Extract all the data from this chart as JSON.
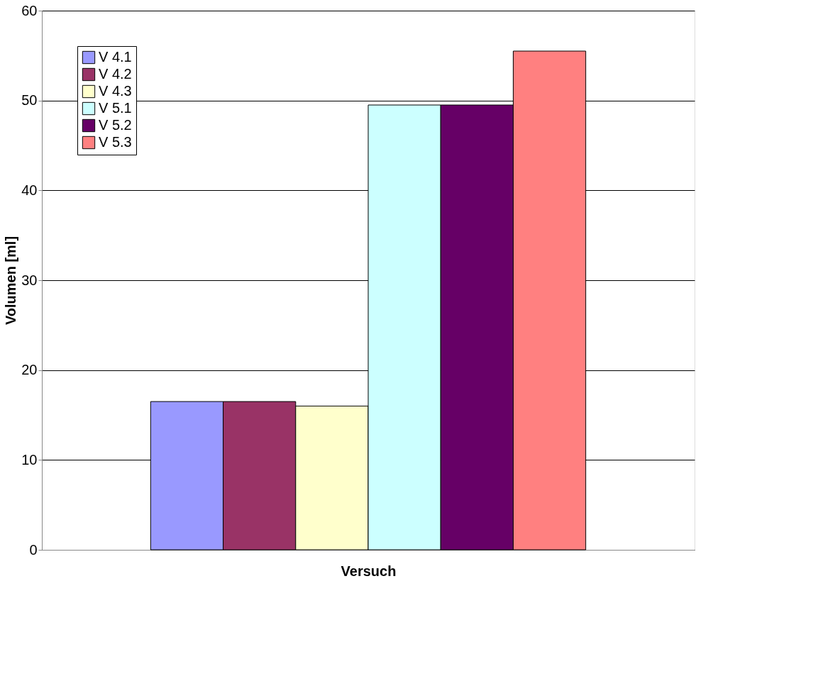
{
  "chart_data": {
    "type": "bar",
    "xlabel": "Versuch",
    "ylabel": "Volumen [ml]",
    "categories": [
      null
    ],
    "series": [
      {
        "name": "V 4.1",
        "color": "#9999ff",
        "values": [
          16.5
        ]
      },
      {
        "name": "V 4.2",
        "color": "#993366",
        "values": [
          16.5
        ]
      },
      {
        "name": "V 4.3",
        "color": "#ffffcc",
        "values": [
          16
        ]
      },
      {
        "name": "V 5.1",
        "color": "#ccffff",
        "values": [
          49.5
        ]
      },
      {
        "name": "V 5.2",
        "color": "#660066",
        "values": [
          49.5
        ]
      },
      {
        "name": "V 5.3",
        "color": "#ff8080",
        "values": [
          55.5
        ]
      }
    ],
    "ylim": [
      0,
      60
    ],
    "yticks": [
      0,
      10,
      20,
      30,
      40,
      50,
      60
    ],
    "grid": "y",
    "legend": "top left",
    "tick_labels": "y"
  }
}
